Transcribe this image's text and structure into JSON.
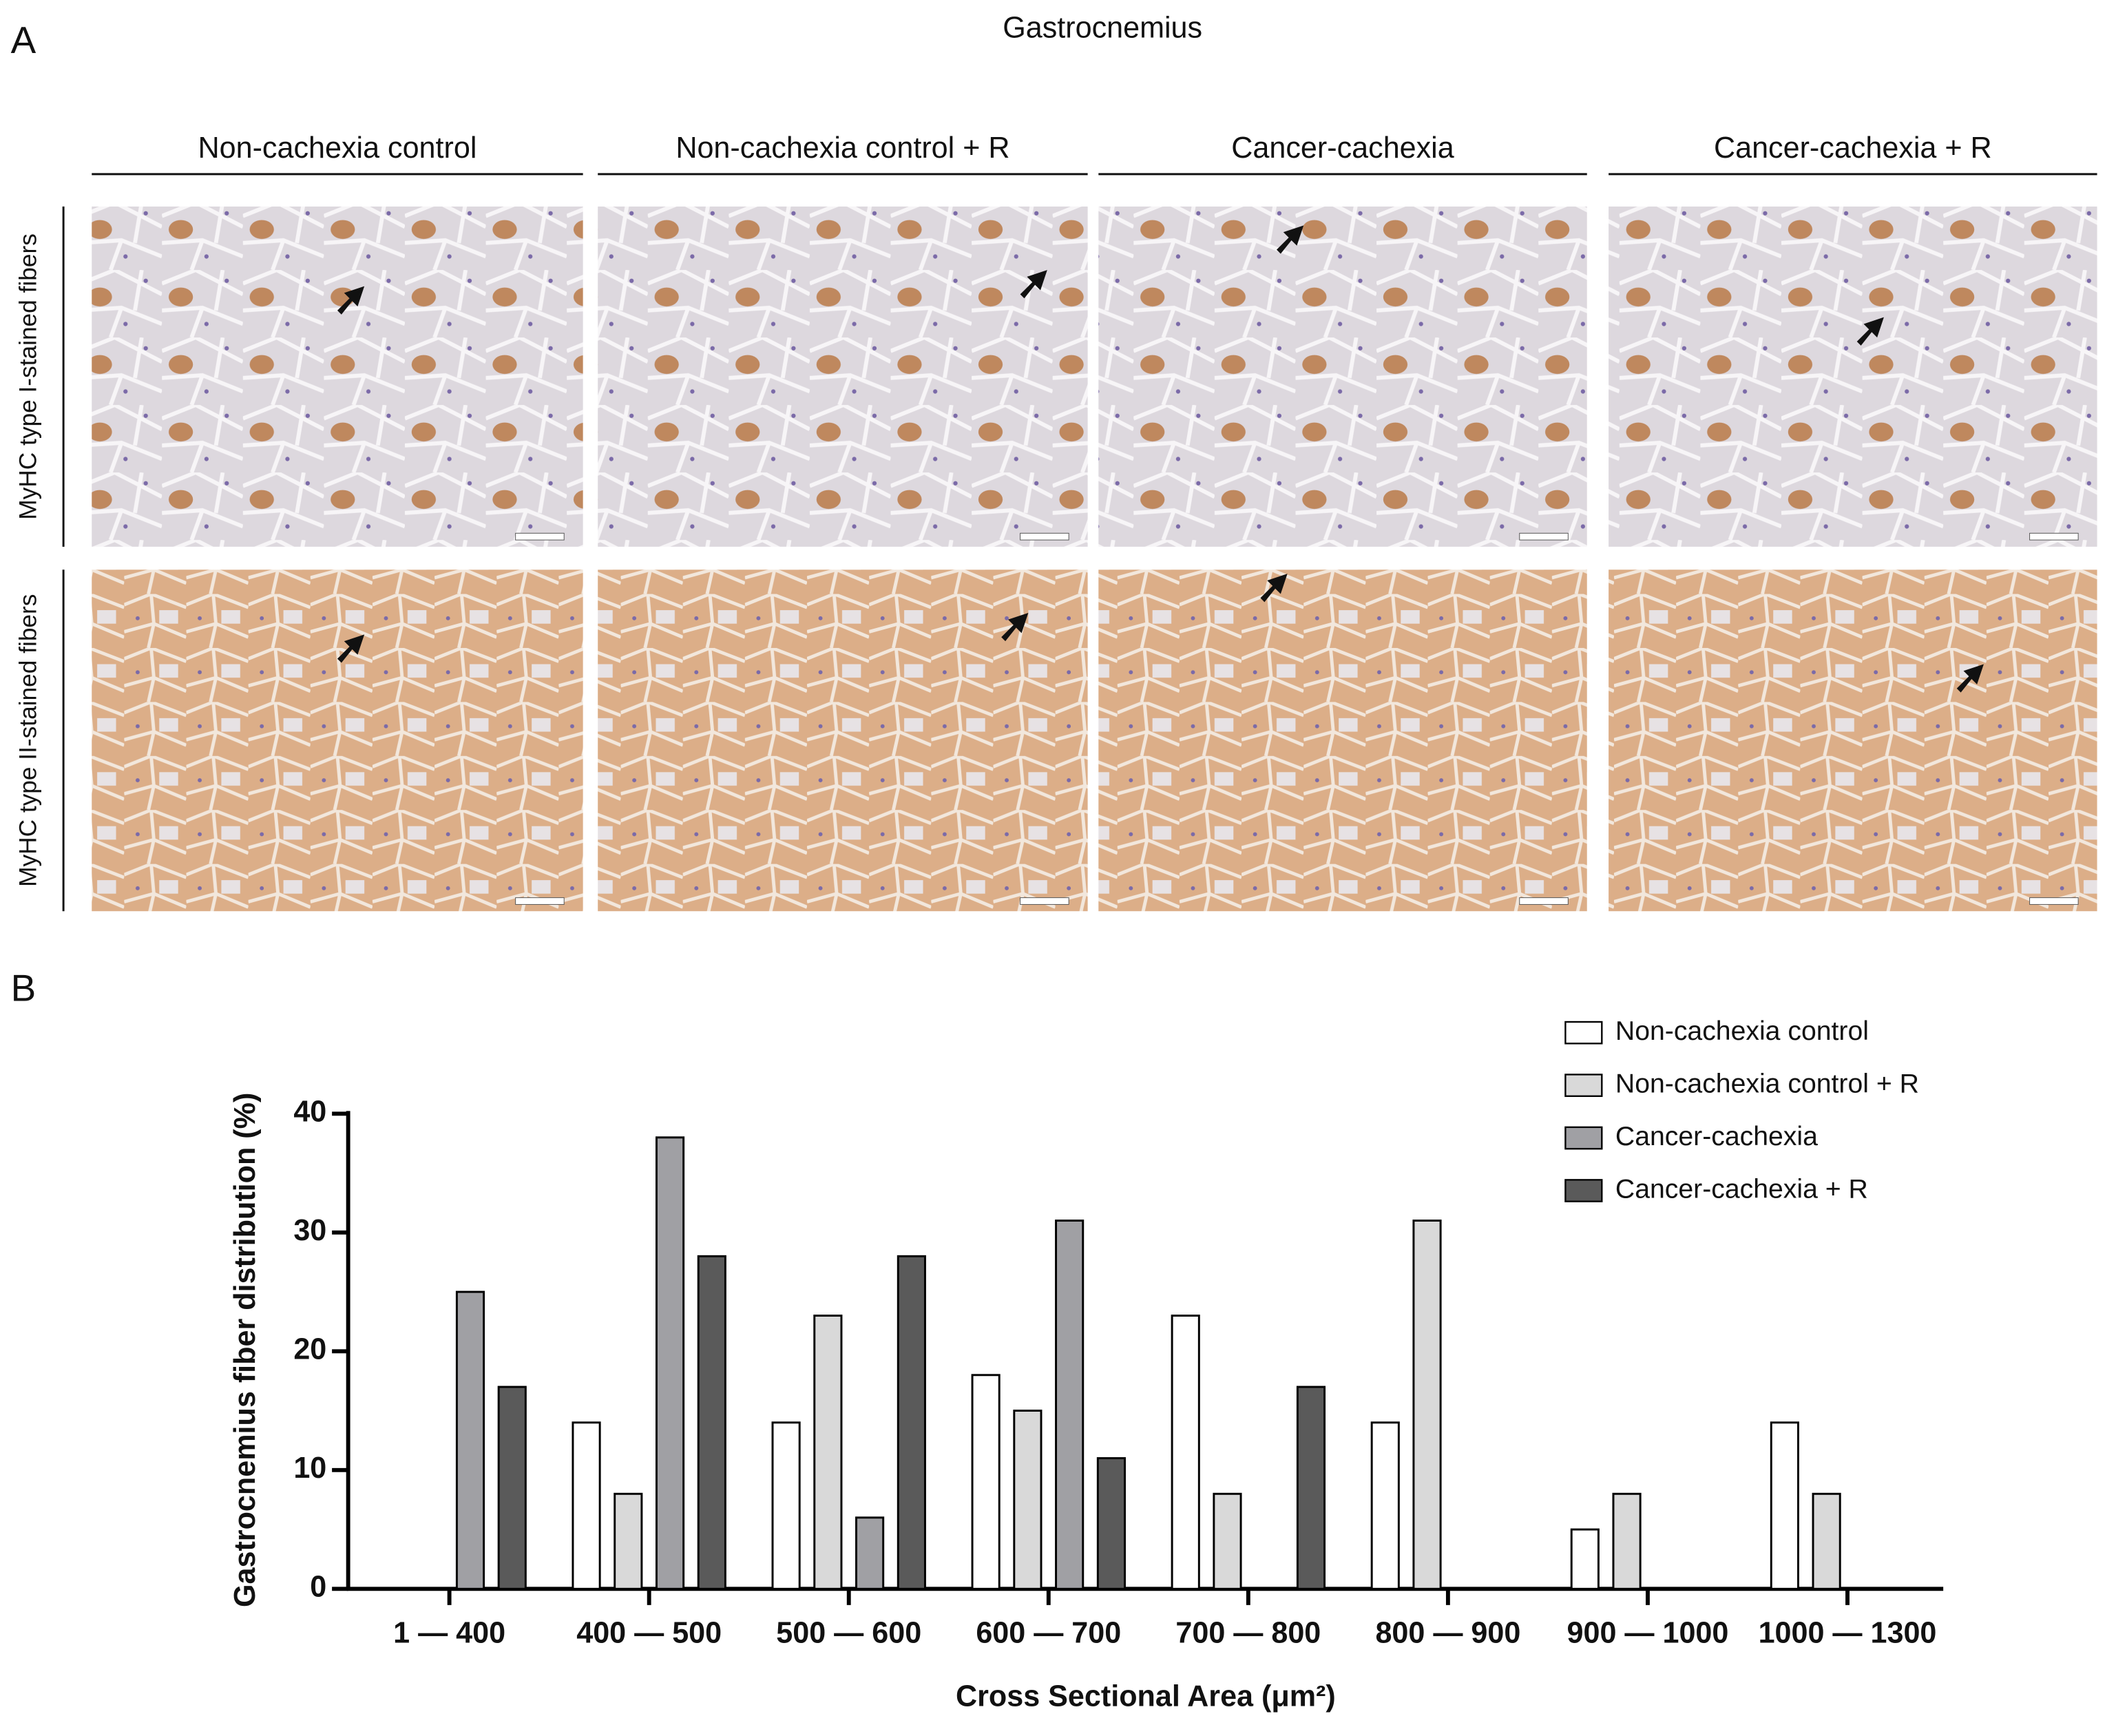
{
  "figure": {
    "panel_a": {
      "label": "A",
      "title": "Gastrocnemius",
      "columns": [
        "Non-cachexia control",
        "Non-cachexia control + R",
        "Cancer-cachexia",
        "Cancer-cachexia + R"
      ],
      "rows": [
        "MyHC type I-stained fibers",
        "MyHC type II-stained fibers"
      ]
    },
    "panel_b": {
      "label": "B"
    }
  },
  "chart_data": {
    "type": "bar",
    "x_label": "Cross Sectional Area (μm²)",
    "y_label": "Gastrocnemius fiber distribution (%)",
    "categories": [
      "1 — 400",
      "400 — 500",
      "500 — 600",
      "600 — 700",
      "700 — 800",
      "800 — 900",
      "900 — 1000",
      "1000 — 1300"
    ],
    "series": [
      {
        "name": "Non-cachexia control",
        "color": "#ffffff",
        "values": [
          0,
          14,
          14,
          18,
          23,
          14,
          5,
          14
        ]
      },
      {
        "name": "Non-cachexia control + R",
        "color": "#d9d9d9",
        "values": [
          0,
          8,
          23,
          15,
          8,
          31,
          8,
          8
        ]
      },
      {
        "name": "Cancer-cachexia",
        "color": "#a0a0a4",
        "values": [
          25,
          38,
          6,
          31,
          0,
          0,
          0,
          0
        ]
      },
      {
        "name": "Cancer-cachexia + R",
        "color": "#5a5a5a",
        "values": [
          17,
          28,
          28,
          11,
          17,
          0,
          0,
          0
        ]
      }
    ],
    "ylim": [
      0,
      40
    ],
    "yticks": [
      0,
      10,
      20,
      30,
      40
    ],
    "grid": false,
    "legend": "top-right"
  }
}
